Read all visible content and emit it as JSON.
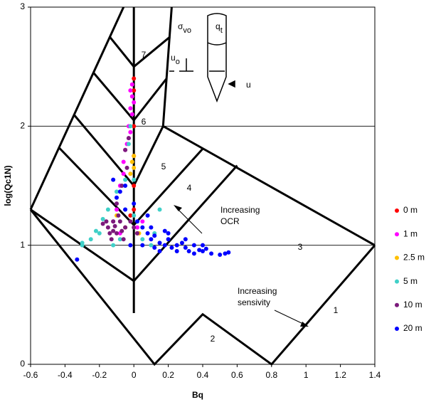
{
  "chart_data": {
    "type": "scatter",
    "xlabel": "Bq",
    "ylabel": "log(Qc1N)",
    "xlim": [
      -0.6,
      1.4
    ],
    "ylim": [
      0,
      3
    ],
    "xticks": [
      -0.6,
      -0.4,
      -0.2,
      0,
      0.2,
      0.4,
      0.6,
      0.8,
      1,
      1.2,
      1.4
    ],
    "yticks": [
      0,
      1,
      2,
      3
    ],
    "grid": true,
    "legend": "right",
    "zone_labels": [
      "1",
      "2",
      "3",
      "4",
      "5",
      "6",
      "7"
    ],
    "annotations": [
      [
        "Increasing",
        "OCR"
      ],
      [
        "Increasing",
        "sensivity"
      ]
    ],
    "icon_labels": [
      {
        "text": "u",
        "sub": "o"
      },
      {
        "text": "σ",
        "sub": "vo"
      },
      {
        "text": "q",
        "sub": "t"
      },
      {
        "text": "u"
      }
    ],
    "series": [
      {
        "name": "0 m",
        "color": "#ff0000",
        "x": [
          0,
          0,
          0,
          0,
          -0.02,
          0.02,
          0,
          0
        ],
        "values": [
          2.4,
          2.3,
          1.5,
          1.3,
          1.25,
          1.1,
          1.75,
          2.0
        ]
      },
      {
        "name": "1 m",
        "color": "#ff00ff",
        "x": [
          -0.01,
          -0.02,
          -0.01,
          0,
          -0.02,
          -0.01,
          -0.03,
          -0.02,
          -0.03,
          -0.04,
          -0.05,
          -0.06,
          -0.06,
          -0.08,
          -0.1,
          -0.12,
          0.02,
          -0.05,
          -0.08,
          0.05
        ],
        "values": [
          2.35,
          2.3,
          2.25,
          2.2,
          2.15,
          2.1,
          2.0,
          1.95,
          1.9,
          1.85,
          1.8,
          1.7,
          1.6,
          1.5,
          1.3,
          1.2,
          1.15,
          1.15,
          1.1,
          1.2
        ]
      },
      {
        "name": "2.5 m",
        "color": "#ffc000",
        "x": [
          0,
          -0.01,
          0,
          -0.02,
          -0.1,
          -0.05,
          0.03
        ],
        "values": [
          1.65,
          1.7,
          1.75,
          1.6,
          1.25,
          1.15,
          1.1
        ]
      },
      {
        "name": "5 m",
        "color": "#40d0c8",
        "x": [
          -0.02,
          -0.03,
          -0.05,
          -0.1,
          -0.15,
          -0.2,
          -0.25,
          -0.3,
          -0.22,
          -0.12,
          0.05,
          0.1,
          -0.05,
          0,
          -0.18,
          0.12,
          -0.08,
          0.15,
          -0.3,
          0
        ],
        "values": [
          2.0,
          1.85,
          1.55,
          1.45,
          1.3,
          1.1,
          1.05,
          1.02,
          1.12,
          1.0,
          1.05,
          1.0,
          1.3,
          1.25,
          1.22,
          1.1,
          1.05,
          1.3,
          1.0,
          1.55
        ]
      },
      {
        "name": "10 m",
        "color": "#7b1a7b",
        "x": [
          -0.03,
          -0.05,
          -0.04,
          -0.07,
          -0.1,
          -0.12,
          -0.15,
          -0.1,
          -0.08,
          -0.05,
          -0.12,
          -0.18,
          -0.06,
          -0.14,
          0,
          -0.02,
          -0.09,
          -0.16,
          -0.11,
          -0.07,
          -0.13,
          0.02
        ],
        "values": [
          1.9,
          1.8,
          1.65,
          1.5,
          1.35,
          1.2,
          1.15,
          1.1,
          1.2,
          1.15,
          1.12,
          1.18,
          1.05,
          1.1,
          1.15,
          1.2,
          1.25,
          1.2,
          1.16,
          1.12,
          1.05,
          1.1
        ]
      },
      {
        "name": "20 m",
        "color": "#0000ff",
        "x": [
          -0.33,
          -0.08,
          -0.1,
          -0.05,
          0,
          0.02,
          0.05,
          0.08,
          0.1,
          0.12,
          0.15,
          0.18,
          0.2,
          0.22,
          0.25,
          0.28,
          0.3,
          0.32,
          0.35,
          0.38,
          0.4,
          0.42,
          0.45,
          0.5,
          0.53,
          0.55,
          0.1,
          0.2,
          0.25,
          0.3,
          0.15,
          0.35,
          0.4,
          -0.05,
          -0.12,
          0.05,
          0.12,
          0.18,
          -0.02,
          0.08
        ],
        "values": [
          0.88,
          1.45,
          1.4,
          1.3,
          1.35,
          1.2,
          1.15,
          1.1,
          1.05,
          1.08,
          1.02,
          1.0,
          1.05,
          0.98,
          1.0,
          1.02,
          0.98,
          0.95,
          1.0,
          0.96,
          0.95,
          0.97,
          0.93,
          0.92,
          0.93,
          0.94,
          1.15,
          1.1,
          0.95,
          1.05,
          0.95,
          0.93,
          1.0,
          1.5,
          1.55,
          1.0,
          0.98,
          1.12,
          1.0,
          1.25
        ]
      }
    ]
  }
}
